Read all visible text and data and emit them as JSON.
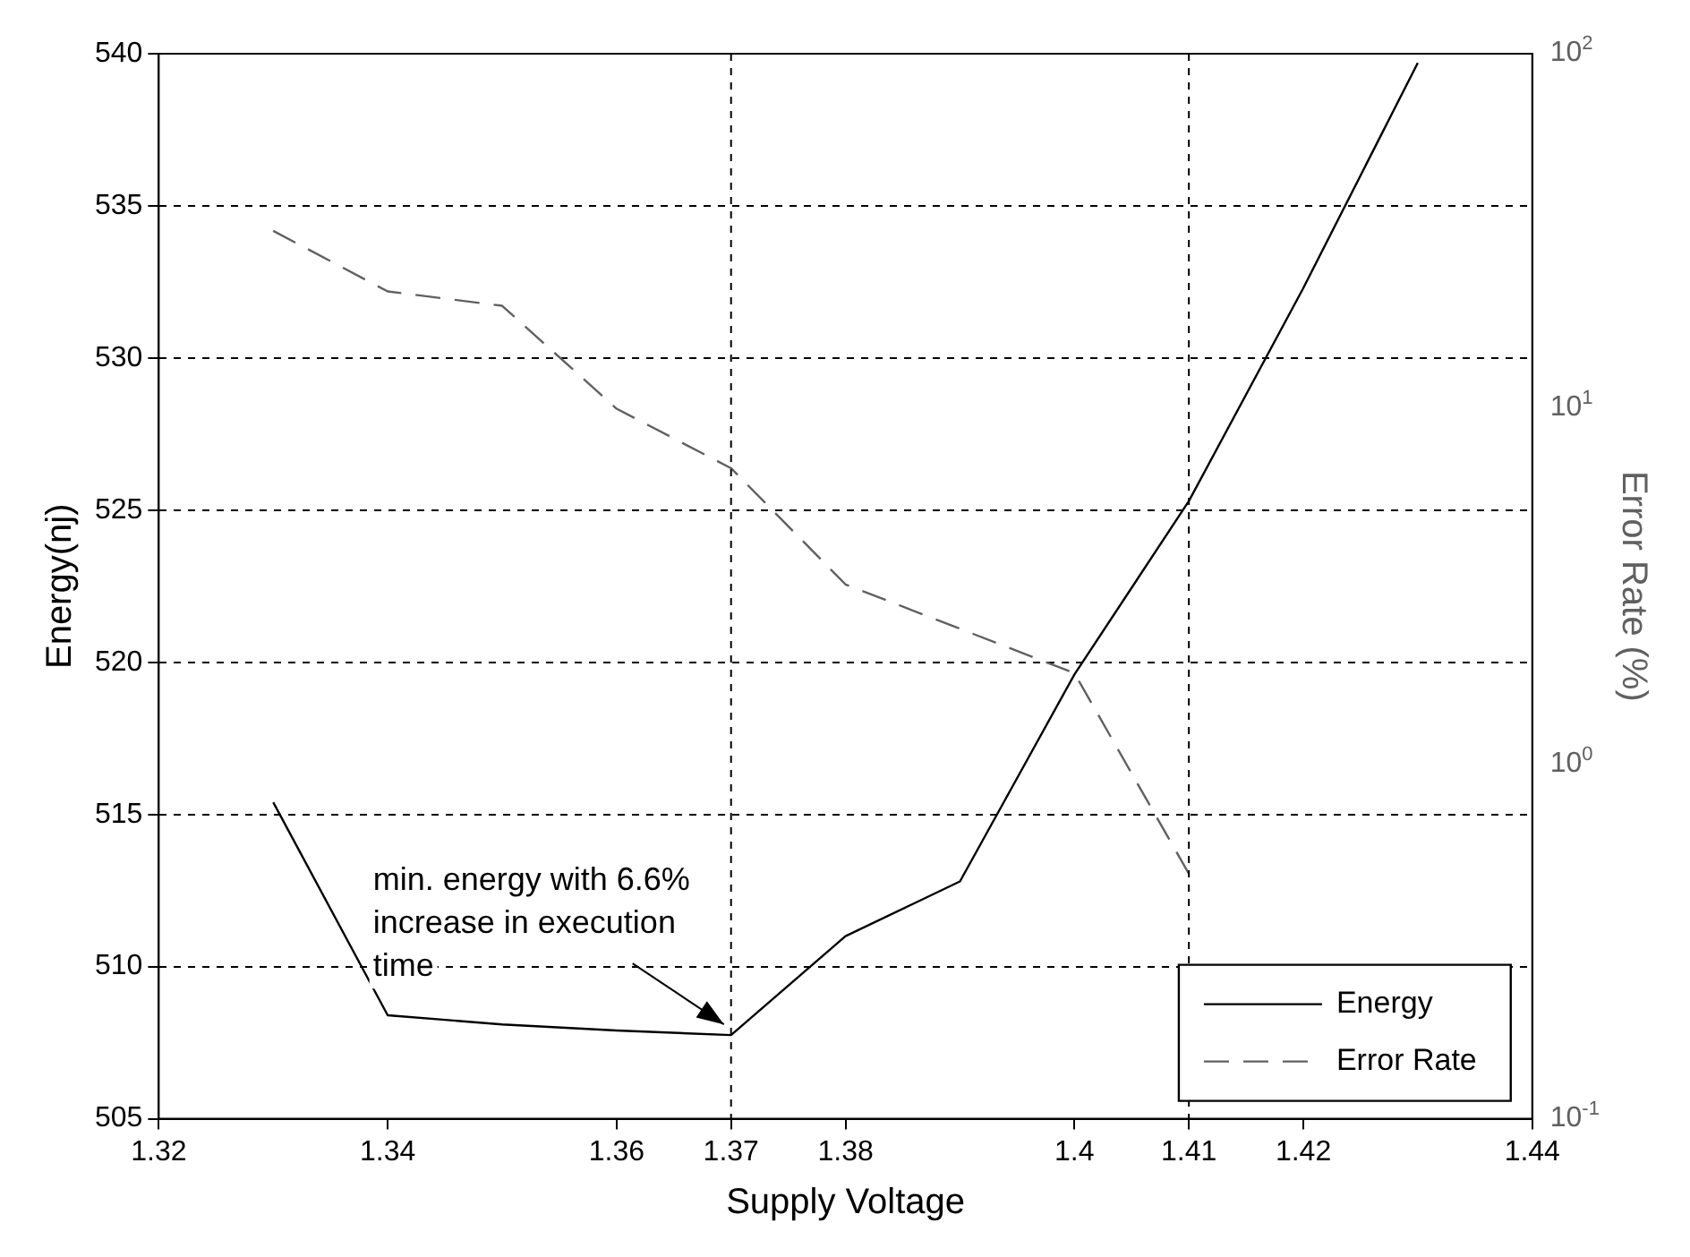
{
  "chart_data": {
    "type": "line",
    "xlabel": "Supply Voltage",
    "ylabel": "Energy(nj)",
    "y2label": "Error Rate (%)",
    "xlim": [
      1.32,
      1.44
    ],
    "xticks": [
      1.32,
      1.34,
      1.36,
      1.37,
      1.38,
      1.4,
      1.41,
      1.42,
      1.44
    ],
    "ylim": [
      505,
      540
    ],
    "yticks": [
      505,
      510,
      515,
      520,
      525,
      530,
      535,
      540
    ],
    "y2lim": [
      0.1,
      100
    ],
    "y2ticks": [
      {
        "value": 0.1,
        "label": "10$^{-1}$"
      },
      {
        "value": 1,
        "label": "10$^{0}$"
      },
      {
        "value": 10,
        "label": "10$^{1}$"
      },
      {
        "value": 100,
        "label": "10$^{2}$"
      }
    ],
    "log": "y2",
    "grid": "y",
    "ref_lines": [
      {
        "axis": "x",
        "value": 1.37,
        "line_style": "dashed",
        "color": "#000000"
      },
      {
        "axis": "x",
        "value": 1.41,
        "line_style": "dashed",
        "color": "#000000"
      }
    ],
    "legend": "bottom right",
    "marker": "none",
    "series": [
      {
        "name": "Energy",
        "color": "#000000",
        "line_style": "solid",
        "x": [
          1.33,
          1.34,
          1.35,
          1.36,
          1.37,
          1.38,
          1.39,
          1.4,
          1.41,
          1.42,
          1.43
        ],
        "values": [
          515.4,
          508.4,
          508.1,
          507.9,
          507.75,
          511.0,
          512.8,
          519.6,
          525.3,
          532.3,
          539.7
        ]
      },
      {
        "name": "Error Rate",
        "color": "#606060",
        "line_style": "dashed",
        "axis": "y2",
        "x": [
          1.33,
          1.34,
          1.35,
          1.36,
          1.37,
          1.38,
          1.39,
          1.4,
          1.41
        ],
        "values": [
          31.7,
          21.4,
          19.5,
          10,
          6.8,
          3.2,
          2.4,
          1.8,
          0.49
        ]
      }
    ],
    "annotations": [
      {
        "text": "min. energy with 6.6% increase in execution time",
        "x": 1.37,
        "y": 507.75
      }
    ]
  }
}
